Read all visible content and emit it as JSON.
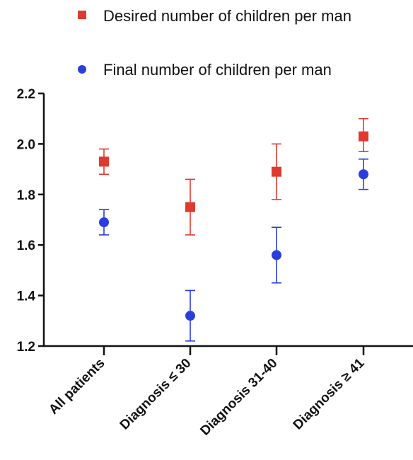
{
  "chart_data": {
    "type": "scatter",
    "categories": [
      "All patients",
      "Diagnosis ≤ 30",
      "Diagnosis 31-40",
      "Diagnosis ≥ 41"
    ],
    "ylim": [
      1.2,
      2.2
    ],
    "yticks": [
      "1.2",
      "1.4",
      "1.6",
      "1.8",
      "2.0",
      "2.2"
    ],
    "grid": false,
    "legend_position": "top",
    "series": [
      {
        "name": "Desired number of children per man",
        "marker": "square",
        "color": "#e03a30",
        "values": [
          1.93,
          1.75,
          1.89,
          2.03
        ],
        "err_low": [
          1.88,
          1.64,
          1.78,
          1.97
        ],
        "err_high": [
          1.98,
          1.86,
          2.0,
          2.1
        ]
      },
      {
        "name": "Final number of children per man",
        "marker": "circle",
        "color": "#2a3ee0",
        "values": [
          1.69,
          1.32,
          1.56,
          1.88
        ],
        "err_low": [
          1.64,
          1.22,
          1.45,
          1.82
        ],
        "err_high": [
          1.74,
          1.42,
          1.67,
          1.94
        ]
      }
    ]
  }
}
